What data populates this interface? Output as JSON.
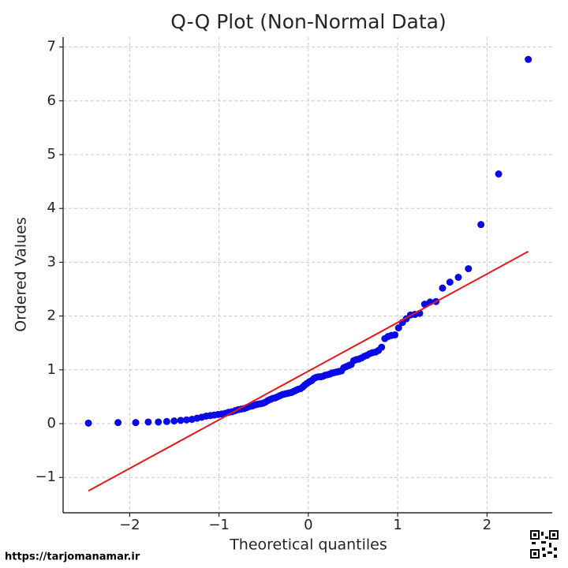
{
  "chart_data": {
    "type": "scatter",
    "title": "Q-Q Plot (Non-Normal Data)",
    "xlabel": "Theoretical quantiles",
    "ylabel": "Ordered Values",
    "watermark": "https://tarjomanamar.ir",
    "xlim": [
      -2.745,
      2.73
    ],
    "ylim": [
      -1.657,
      7.185
    ],
    "xticks": [
      {
        "value": -2,
        "label": "−2"
      },
      {
        "value": -1,
        "label": "−1"
      },
      0,
      1,
      2
    ],
    "yticks": [
      {
        "value": -1,
        "label": "−1"
      },
      0,
      1,
      2,
      3,
      4,
      5,
      6,
      7
    ],
    "grid": true,
    "series": [
      {
        "style": "markers",
        "color": "#0a0ae6",
        "x": [
          -2.462,
          -2.13,
          -1.932,
          -1.792,
          -1.679,
          -1.585,
          -1.502,
          -1.429,
          -1.363,
          -1.302,
          -1.246,
          -1.193,
          -1.144,
          -1.097,
          -1.053,
          -1.01,
          -0.969,
          -0.931,
          -0.893,
          -0.856,
          -0.82,
          -0.785,
          -0.752,
          -0.719,
          -0.687,
          -0.656,
          -0.625,
          -0.595,
          -0.566,
          -0.536,
          -0.508,
          -0.48,
          -0.452,
          -0.424,
          -0.397,
          -0.37,
          -0.343,
          -0.317,
          -0.291,
          -0.265,
          -0.239,
          -0.214,
          -0.188,
          -0.163,
          -0.138,
          -0.113,
          -0.088,
          -0.063,
          -0.038,
          -0.013,
          0.013,
          0.038,
          0.063,
          0.088,
          0.113,
          0.138,
          0.163,
          0.188,
          0.214,
          0.239,
          0.265,
          0.291,
          0.317,
          0.343,
          0.37,
          0.397,
          0.424,
          0.452,
          0.48,
          0.508,
          0.536,
          0.566,
          0.595,
          0.625,
          0.656,
          0.687,
          0.719,
          0.752,
          0.785,
          0.82,
          0.856,
          0.893,
          0.931,
          0.969,
          1.01,
          1.053,
          1.097,
          1.144,
          1.193,
          1.246,
          1.302,
          1.363,
          1.429,
          1.502,
          1.585,
          1.679,
          1.792,
          1.932,
          2.13,
          2.462
        ],
        "values": [
          0.01,
          0.02,
          0.02,
          0.03,
          0.03,
          0.04,
          0.05,
          0.06,
          0.07,
          0.08,
          0.1,
          0.12,
          0.14,
          0.15,
          0.16,
          0.17,
          0.18,
          0.19,
          0.21,
          0.22,
          0.24,
          0.26,
          0.27,
          0.28,
          0.3,
          0.32,
          0.33,
          0.35,
          0.36,
          0.37,
          0.38,
          0.4,
          0.43,
          0.45,
          0.47,
          0.48,
          0.5,
          0.52,
          0.54,
          0.55,
          0.56,
          0.57,
          0.58,
          0.6,
          0.62,
          0.64,
          0.65,
          0.68,
          0.72,
          0.75,
          0.78,
          0.8,
          0.84,
          0.86,
          0.87,
          0.87,
          0.88,
          0.9,
          0.91,
          0.92,
          0.94,
          0.95,
          0.96,
          0.97,
          0.98,
          1.04,
          1.06,
          1.08,
          1.1,
          1.17,
          1.19,
          1.2,
          1.22,
          1.25,
          1.27,
          1.3,
          1.32,
          1.33,
          1.36,
          1.42,
          1.58,
          1.62,
          1.64,
          1.65,
          1.78,
          1.88,
          1.95,
          2.02,
          2.03,
          2.05,
          2.22,
          2.26,
          2.27,
          2.52,
          2.63,
          2.72,
          2.88,
          3.7,
          4.64,
          6.77
        ]
      },
      {
        "style": "line",
        "color": "#e31a1c",
        "x": [
          -2.462,
          2.462
        ],
        "values": [
          -1.25,
          3.2
        ]
      }
    ]
  }
}
